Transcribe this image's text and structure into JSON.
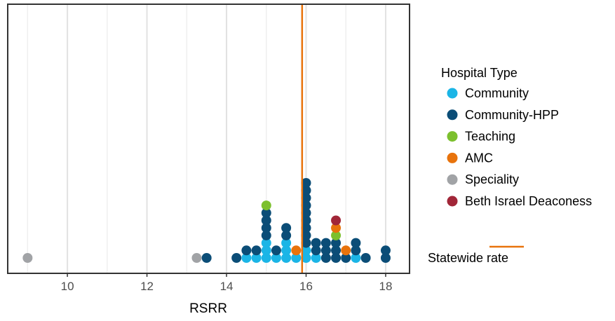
{
  "chart_data": {
    "type": "dotplot",
    "xlabel": "RSRR",
    "xlim": [
      8.5,
      18.6
    ],
    "xticks": [
      10,
      12,
      14,
      16,
      18
    ],
    "grid": true,
    "reference_line": {
      "label": "Statewide rate",
      "x": 15.9,
      "color": "#E8730C"
    },
    "legend": {
      "title": "Hospital Type",
      "placement": "right",
      "entries": [
        {
          "name": "Community",
          "color": "#1BB5E6"
        },
        {
          "name": "Community-HPP",
          "color": "#0B4D77"
        },
        {
          "name": "Teaching",
          "color": "#7CC02E"
        },
        {
          "name": "AMC",
          "color": "#E8730C"
        },
        {
          "name": "Speciality",
          "color": "#A1A3A6"
        },
        {
          "name": "Beth Israel Deaconess",
          "color": "#A12638"
        }
      ]
    },
    "stacks": [
      {
        "x": 9.0,
        "types": [
          "Speciality"
        ]
      },
      {
        "x": 13.25,
        "types": [
          "Speciality"
        ]
      },
      {
        "x": 13.5,
        "types": [
          "Community-HPP"
        ]
      },
      {
        "x": 14.25,
        "types": [
          "Community-HPP"
        ]
      },
      {
        "x": 14.5,
        "types": [
          "Community",
          "Community-HPP"
        ]
      },
      {
        "x": 14.75,
        "types": [
          "Community",
          "Community-HPP"
        ]
      },
      {
        "x": 15.0,
        "types": [
          "Community",
          "Community",
          "Community",
          "Community-HPP",
          "Community-HPP",
          "Community-HPP",
          "Community-HPP",
          "Teaching"
        ]
      },
      {
        "x": 15.25,
        "types": [
          "Community",
          "Community-HPP"
        ]
      },
      {
        "x": 15.5,
        "types": [
          "Community",
          "Community",
          "Community",
          "Community-HPP",
          "Community-HPP"
        ]
      },
      {
        "x": 15.75,
        "types": [
          "Community",
          "AMC"
        ]
      },
      {
        "x": 16.0,
        "types": [
          "Community",
          "Community",
          "Community-HPP",
          "Community-HPP",
          "Community-HPP",
          "Community-HPP",
          "Community-HPP",
          "Community-HPP",
          "Community-HPP",
          "Community-HPP",
          "Community-HPP"
        ]
      },
      {
        "x": 16.25,
        "types": [
          "Community",
          "Community-HPP",
          "Community-HPP"
        ]
      },
      {
        "x": 16.5,
        "types": [
          "Community-HPP",
          "Community-HPP",
          "Community-HPP"
        ]
      },
      {
        "x": 16.75,
        "types": [
          "Community-HPP",
          "Community-HPP",
          "Community-HPP",
          "Teaching",
          "AMC",
          "Beth Israel Deaconess"
        ]
      },
      {
        "x": 17.0,
        "types": [
          "Community-HPP",
          "AMC"
        ]
      },
      {
        "x": 17.25,
        "types": [
          "Community",
          "Community-HPP",
          "Community-HPP"
        ]
      },
      {
        "x": 17.5,
        "types": [
          "Community-HPP"
        ]
      },
      {
        "x": 18.0,
        "types": [
          "Community-HPP",
          "Community-HPP"
        ]
      }
    ]
  }
}
